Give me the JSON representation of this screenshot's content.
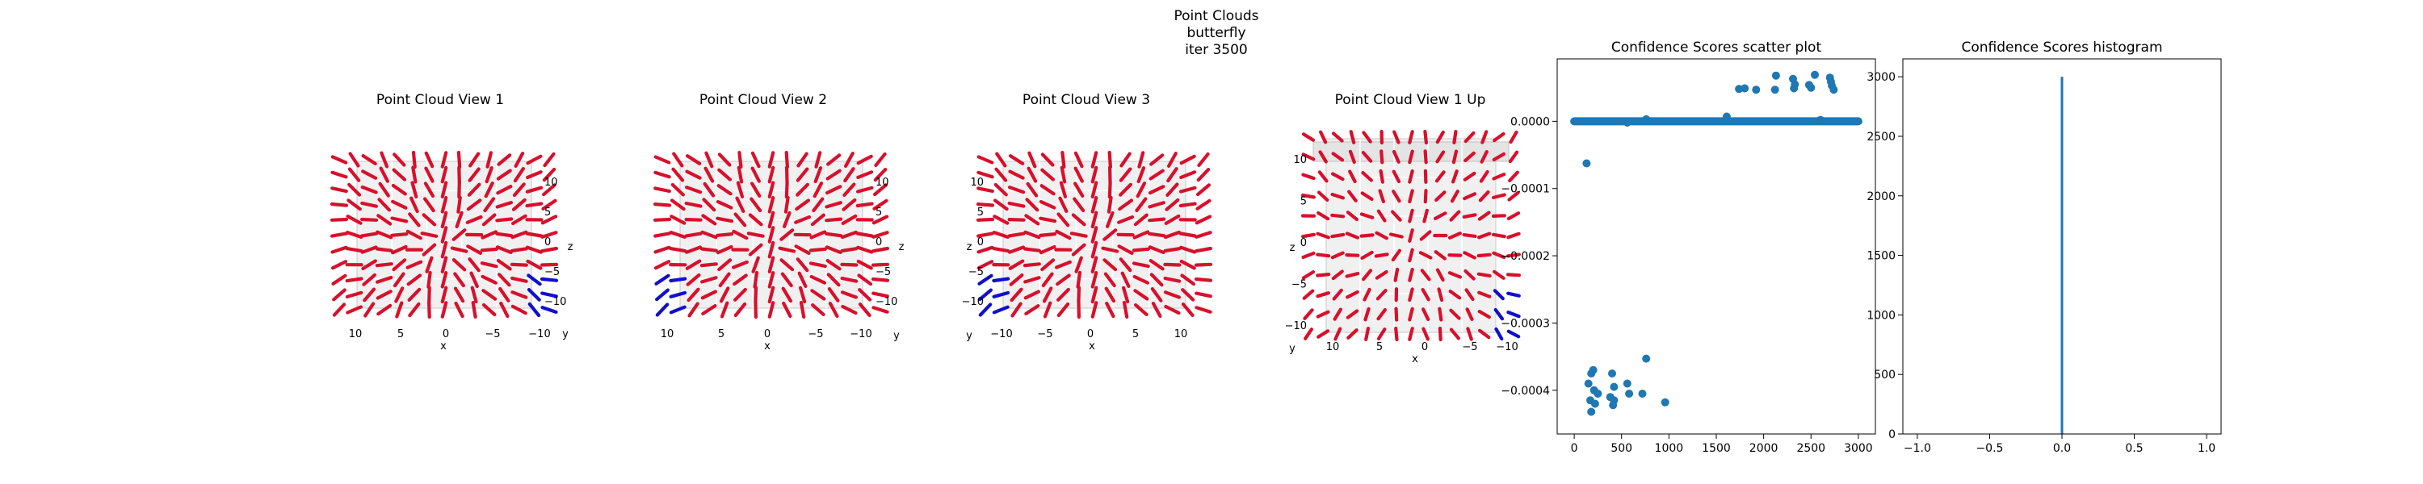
{
  "suptitle": [
    "Point Clouds",
    "butterfly",
    "iter 3500"
  ],
  "colors": {
    "points": "#d8102c",
    "low_conf": "#1010cc",
    "scatter": "#1f77b4",
    "axis": "#000000",
    "pane": "#f0f0f0"
  },
  "views": [
    {
      "title": "Point Cloud View 1",
      "x_ticks": [
        "10",
        "5",
        "0",
        "−5",
        "−10"
      ],
      "y_ticks": [
        "10",
        "5",
        "0",
        "−5",
        "−10"
      ],
      "z_ticks": [
        "10",
        "5",
        "0",
        "−5",
        "−10"
      ],
      "xlabel": "x",
      "ylabel": "y",
      "zlabel": "z"
    },
    {
      "title": "Point Cloud View 2",
      "x_ticks": [
        "10",
        "5",
        "0",
        "−5",
        "−10"
      ],
      "y_ticks": [
        "10",
        "5",
        "0",
        "−5",
        "−10"
      ],
      "z_ticks": [
        "10",
        "5",
        "0",
        "−5",
        "−10"
      ],
      "xlabel": "x",
      "ylabel": "y",
      "zlabel": "z"
    },
    {
      "title": "Point Cloud View 3",
      "x_ticks": [
        "−10",
        "−5",
        "0",
        "5",
        "10"
      ],
      "y_ticks": [
        "10",
        "5",
        "0",
        "−5",
        "−10"
      ],
      "z_ticks": [
        "10",
        "5",
        "0",
        "−5",
        "−10"
      ],
      "xlabel": "x",
      "ylabel": "y",
      "zlabel": "z"
    },
    {
      "title": "Point Cloud View 1 Up",
      "x_ticks": [
        "10",
        "5",
        "0",
        "−5",
        "−10"
      ],
      "y_ticks": [
        "10",
        "5",
        "0",
        "−5",
        "−10"
      ],
      "z_ticks": [
        "10",
        "5",
        "0",
        "−5",
        "−10"
      ],
      "xlabel": "x",
      "ylabel": "y",
      "zlabel": "z"
    }
  ],
  "chart_data": [
    {
      "type": "scatter",
      "title": "Confidence Scores scatter plot",
      "xlim": [
        -180,
        3180
      ],
      "ylim": [
        -0.000465,
        9.28e-05
      ],
      "xticks": [
        0,
        500,
        1000,
        1500,
        2000,
        2500,
        3000
      ],
      "yticks": [
        0.0,
        -0.0001,
        -0.0002,
        -0.0003,
        -0.0004
      ],
      "ytick_labels": [
        "0.0000",
        "−0.0001",
        "−0.0002",
        "−0.0003",
        "−0.0004"
      ],
      "dense_band": {
        "x_range": [
          0,
          3000
        ],
        "y": 0.0
      },
      "points": [
        [
          130,
          -6.25e-05
        ],
        [
          180,
          -0.000375
        ],
        [
          200,
          -0.00037
        ],
        [
          150,
          -0.00039
        ],
        [
          210,
          -0.0004
        ],
        [
          250,
          -0.000405
        ],
        [
          170,
          -0.000415
        ],
        [
          220,
          -0.00042
        ],
        [
          180,
          -0.000432
        ],
        [
          400,
          -0.000375
        ],
        [
          420,
          -0.000395
        ],
        [
          380,
          -0.00041
        ],
        [
          420,
          -0.000415
        ],
        [
          410,
          -0.000422
        ],
        [
          560,
          -0.00039
        ],
        [
          580,
          -0.000405
        ],
        [
          760,
          -0.000353
        ],
        [
          720,
          -0.000405
        ],
        [
          960,
          -0.000418
        ],
        [
          1610,
          7e-06
        ],
        [
          1740,
          4.8e-05
        ],
        [
          1920,
          4.7e-05
        ],
        [
          2130,
          6.8e-05
        ],
        [
          2120,
          4.7e-05
        ],
        [
          2310,
          6.3e-05
        ],
        [
          2320,
          4.9e-05
        ],
        [
          2480,
          5.4e-05
        ],
        [
          2500,
          5e-05
        ],
        [
          2540,
          6.9e-05
        ],
        [
          2700,
          6.5e-05
        ],
        [
          2720,
          5.3e-05
        ],
        [
          2740,
          4.7e-05
        ],
        [
          2710,
          5.9e-05
        ],
        [
          2330,
          5.5e-05
        ],
        [
          1800,
          4.9e-05
        ],
        [
          560,
          -2e-06
        ],
        [
          760,
          3e-06
        ],
        [
          2600,
          2e-06
        ]
      ]
    },
    {
      "type": "bar",
      "title": "Confidence Scores histogram",
      "xlim": [
        -1.1,
        1.1
      ],
      "ylim": [
        0,
        3150
      ],
      "xticks": [
        -1.0,
        -0.5,
        0.0,
        0.5,
        1.0
      ],
      "xtick_labels": [
        "−1.0",
        "−0.5",
        "0.0",
        "0.5",
        "1.0"
      ],
      "yticks": [
        0,
        500,
        1000,
        1500,
        2000,
        2500,
        3000
      ],
      "bars": [
        {
          "x": 0.0,
          "value": 3000
        }
      ]
    }
  ]
}
